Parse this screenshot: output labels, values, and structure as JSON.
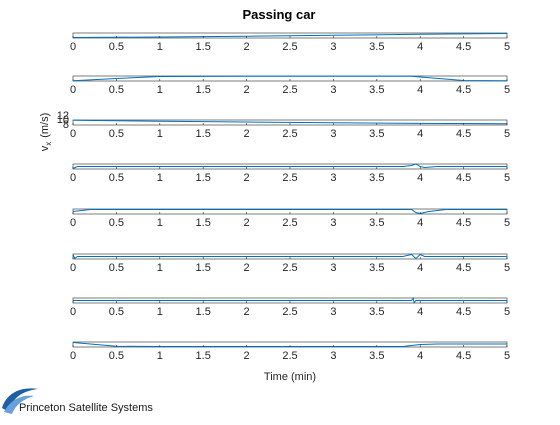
{
  "page": {
    "brand_text": "Princeton Satellite Systems"
  },
  "chart_data": {
    "type": "line",
    "title": "Passing car",
    "xlabel": "Time (min)",
    "ylabel_main": "v",
    "ylabel_sub": "x",
    "ylabel_unit": "(m/s)",
    "xlim": [
      0,
      5
    ],
    "x_ticks": [
      "0",
      "0.5",
      "1",
      "1.5",
      "2",
      "2.5",
      "3",
      "3.5",
      "4",
      "4.5",
      "5"
    ],
    "y_tick_labels_panel3": [
      "12",
      "10",
      "8"
    ],
    "line_color": "#0072BD",
    "grid": false,
    "panels": [
      {
        "ylim": [
          0,
          1
        ],
        "x": [
          0,
          1,
          2,
          3,
          4,
          5
        ],
        "y": [
          0.1,
          0.2,
          0.35,
          0.55,
          0.75,
          0.9
        ]
      },
      {
        "ylim": [
          0,
          1
        ],
        "x": [
          0,
          0.5,
          1,
          2,
          3,
          3.9,
          4.0,
          4.5,
          5
        ],
        "y": [
          0.05,
          0.5,
          0.9,
          0.95,
          0.95,
          0.95,
          0.8,
          0.1,
          0.05
        ]
      },
      {
        "ylim": [
          8,
          12
        ],
        "x": [
          0,
          1,
          2,
          3,
          4,
          5
        ],
        "y": [
          11.8,
          11.0,
          10.4,
          9.8,
          9.3,
          9.0
        ]
      },
      {
        "ylim": [
          0,
          1
        ],
        "x": [
          0,
          0.05,
          0.1,
          3.8,
          3.9,
          3.95,
          4.0,
          4.05,
          4.2,
          5
        ],
        "y": [
          0.1,
          0.5,
          0.5,
          0.5,
          0.7,
          1.0,
          0.5,
          0.3,
          0.5,
          0.5
        ]
      },
      {
        "ylim": [
          0,
          1
        ],
        "x": [
          0,
          0.2,
          3.8,
          3.9,
          3.95,
          4.0,
          4.1,
          4.3,
          5
        ],
        "y": [
          0.5,
          0.9,
          0.9,
          0.9,
          0.3,
          0.1,
          0.5,
          0.9,
          0.9
        ]
      },
      {
        "ylim": [
          0,
          1
        ],
        "x": [
          0,
          0.02,
          0.05,
          3.8,
          3.9,
          3.95,
          4.0,
          4.05,
          4.15,
          5
        ],
        "y": [
          0.9,
          0.1,
          0.5,
          0.5,
          0.9,
          0.1,
          0.9,
          0.5,
          0.5,
          0.5
        ]
      },
      {
        "ylim": [
          0,
          1
        ],
        "x": [
          0,
          3.9,
          3.92,
          3.93,
          3.95,
          5
        ],
        "y": [
          0.5,
          0.5,
          0.95,
          0.05,
          0.5,
          0.5
        ]
      },
      {
        "ylim": [
          0,
          1
        ],
        "x": [
          0,
          0.2,
          0.5,
          1,
          3.8,
          4.0,
          4.2,
          5
        ],
        "y": [
          0.9,
          0.6,
          0.15,
          0.1,
          0.1,
          0.5,
          0.6,
          0.6
        ]
      }
    ]
  }
}
